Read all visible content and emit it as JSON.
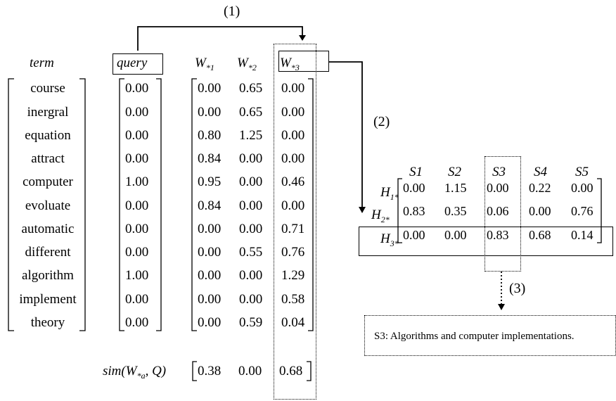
{
  "steps": {
    "s1": "(1)",
    "s2": "(2)",
    "s3": "(3)"
  },
  "headers": {
    "term": "term",
    "query": "query",
    "w1": "W",
    "w1sub": "*1",
    "w2": "W",
    "w2sub": "*2",
    "w3": "W",
    "w3sub": "*3"
  },
  "terms": [
    "course",
    "inergral",
    "equation",
    "attract",
    "computer",
    "evoluate",
    "automatic",
    "different",
    "algorithm",
    "implement",
    "theory"
  ],
  "query_values": [
    "0.00",
    "0.00",
    "0.00",
    "0.00",
    "1.00",
    "0.00",
    "0.00",
    "0.00",
    "1.00",
    "0.00",
    "0.00"
  ],
  "w_matrix": [
    [
      "0.00",
      "0.65",
      "0.00"
    ],
    [
      "0.00",
      "0.65",
      "0.00"
    ],
    [
      "0.80",
      "1.25",
      "0.00"
    ],
    [
      "0.84",
      "0.00",
      "0.00"
    ],
    [
      "0.95",
      "0.00",
      "0.46"
    ],
    [
      "0.84",
      "0.00",
      "0.00"
    ],
    [
      "0.00",
      "0.00",
      "0.71"
    ],
    [
      "0.00",
      "0.55",
      "0.76"
    ],
    [
      "0.00",
      "0.00",
      "1.29"
    ],
    [
      "0.00",
      "0.00",
      "0.58"
    ],
    [
      "0.00",
      "0.59",
      "0.04"
    ]
  ],
  "sim": {
    "label_pre": "sim(W",
    "label_sub": "*a",
    "label_post": ", Q)",
    "values": [
      "0.38",
      "0.00",
      "0.68"
    ]
  },
  "h_table": {
    "columns": [
      "S1",
      "S2",
      "S3",
      "S4",
      "S5"
    ],
    "rows": [
      {
        "label": "H",
        "sub": "1*",
        "values": [
          "0.00",
          "1.15",
          "0.00",
          "0.22",
          "0.00"
        ]
      },
      {
        "label": "H",
        "sub": "2*",
        "values": [
          "0.83",
          "0.35",
          "0.06",
          "0.00",
          "0.76"
        ]
      },
      {
        "label": "H",
        "sub": "3*",
        "values": [
          "0.00",
          "0.00",
          "0.83",
          "0.68",
          "0.14"
        ]
      }
    ]
  },
  "result_caption": "S3: Algorithms and computer implementations."
}
